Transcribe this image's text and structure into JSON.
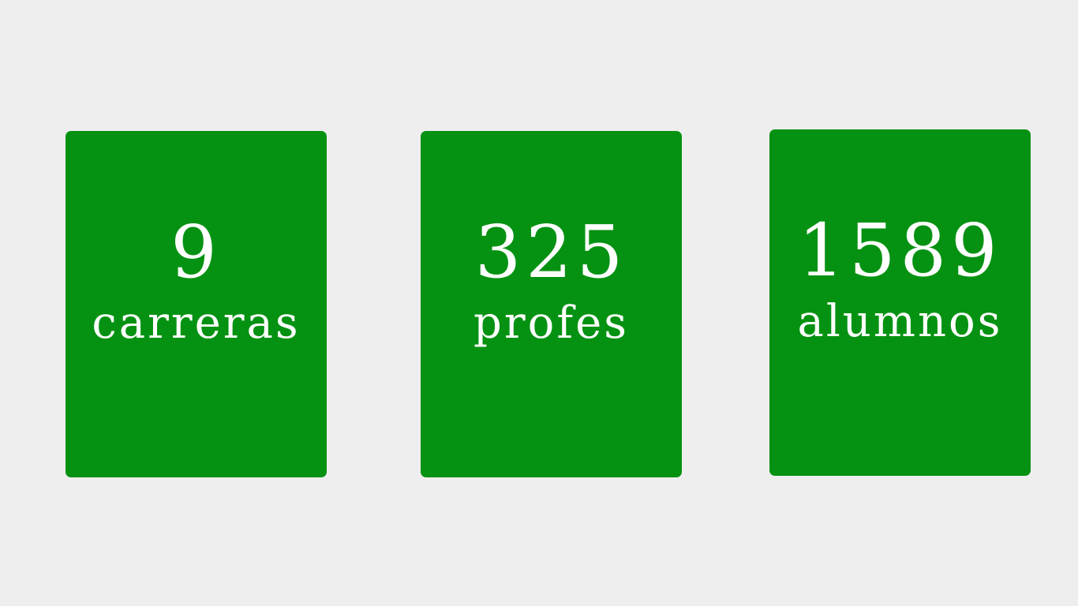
{
  "theme": {
    "background": "#eeeeee",
    "card_color": "#059212",
    "text_color": "#ffffff"
  },
  "stats": [
    {
      "value": "9",
      "label": "carreras"
    },
    {
      "value": "325",
      "label": "profes"
    },
    {
      "value": "1589",
      "label": "alumnos"
    }
  ]
}
